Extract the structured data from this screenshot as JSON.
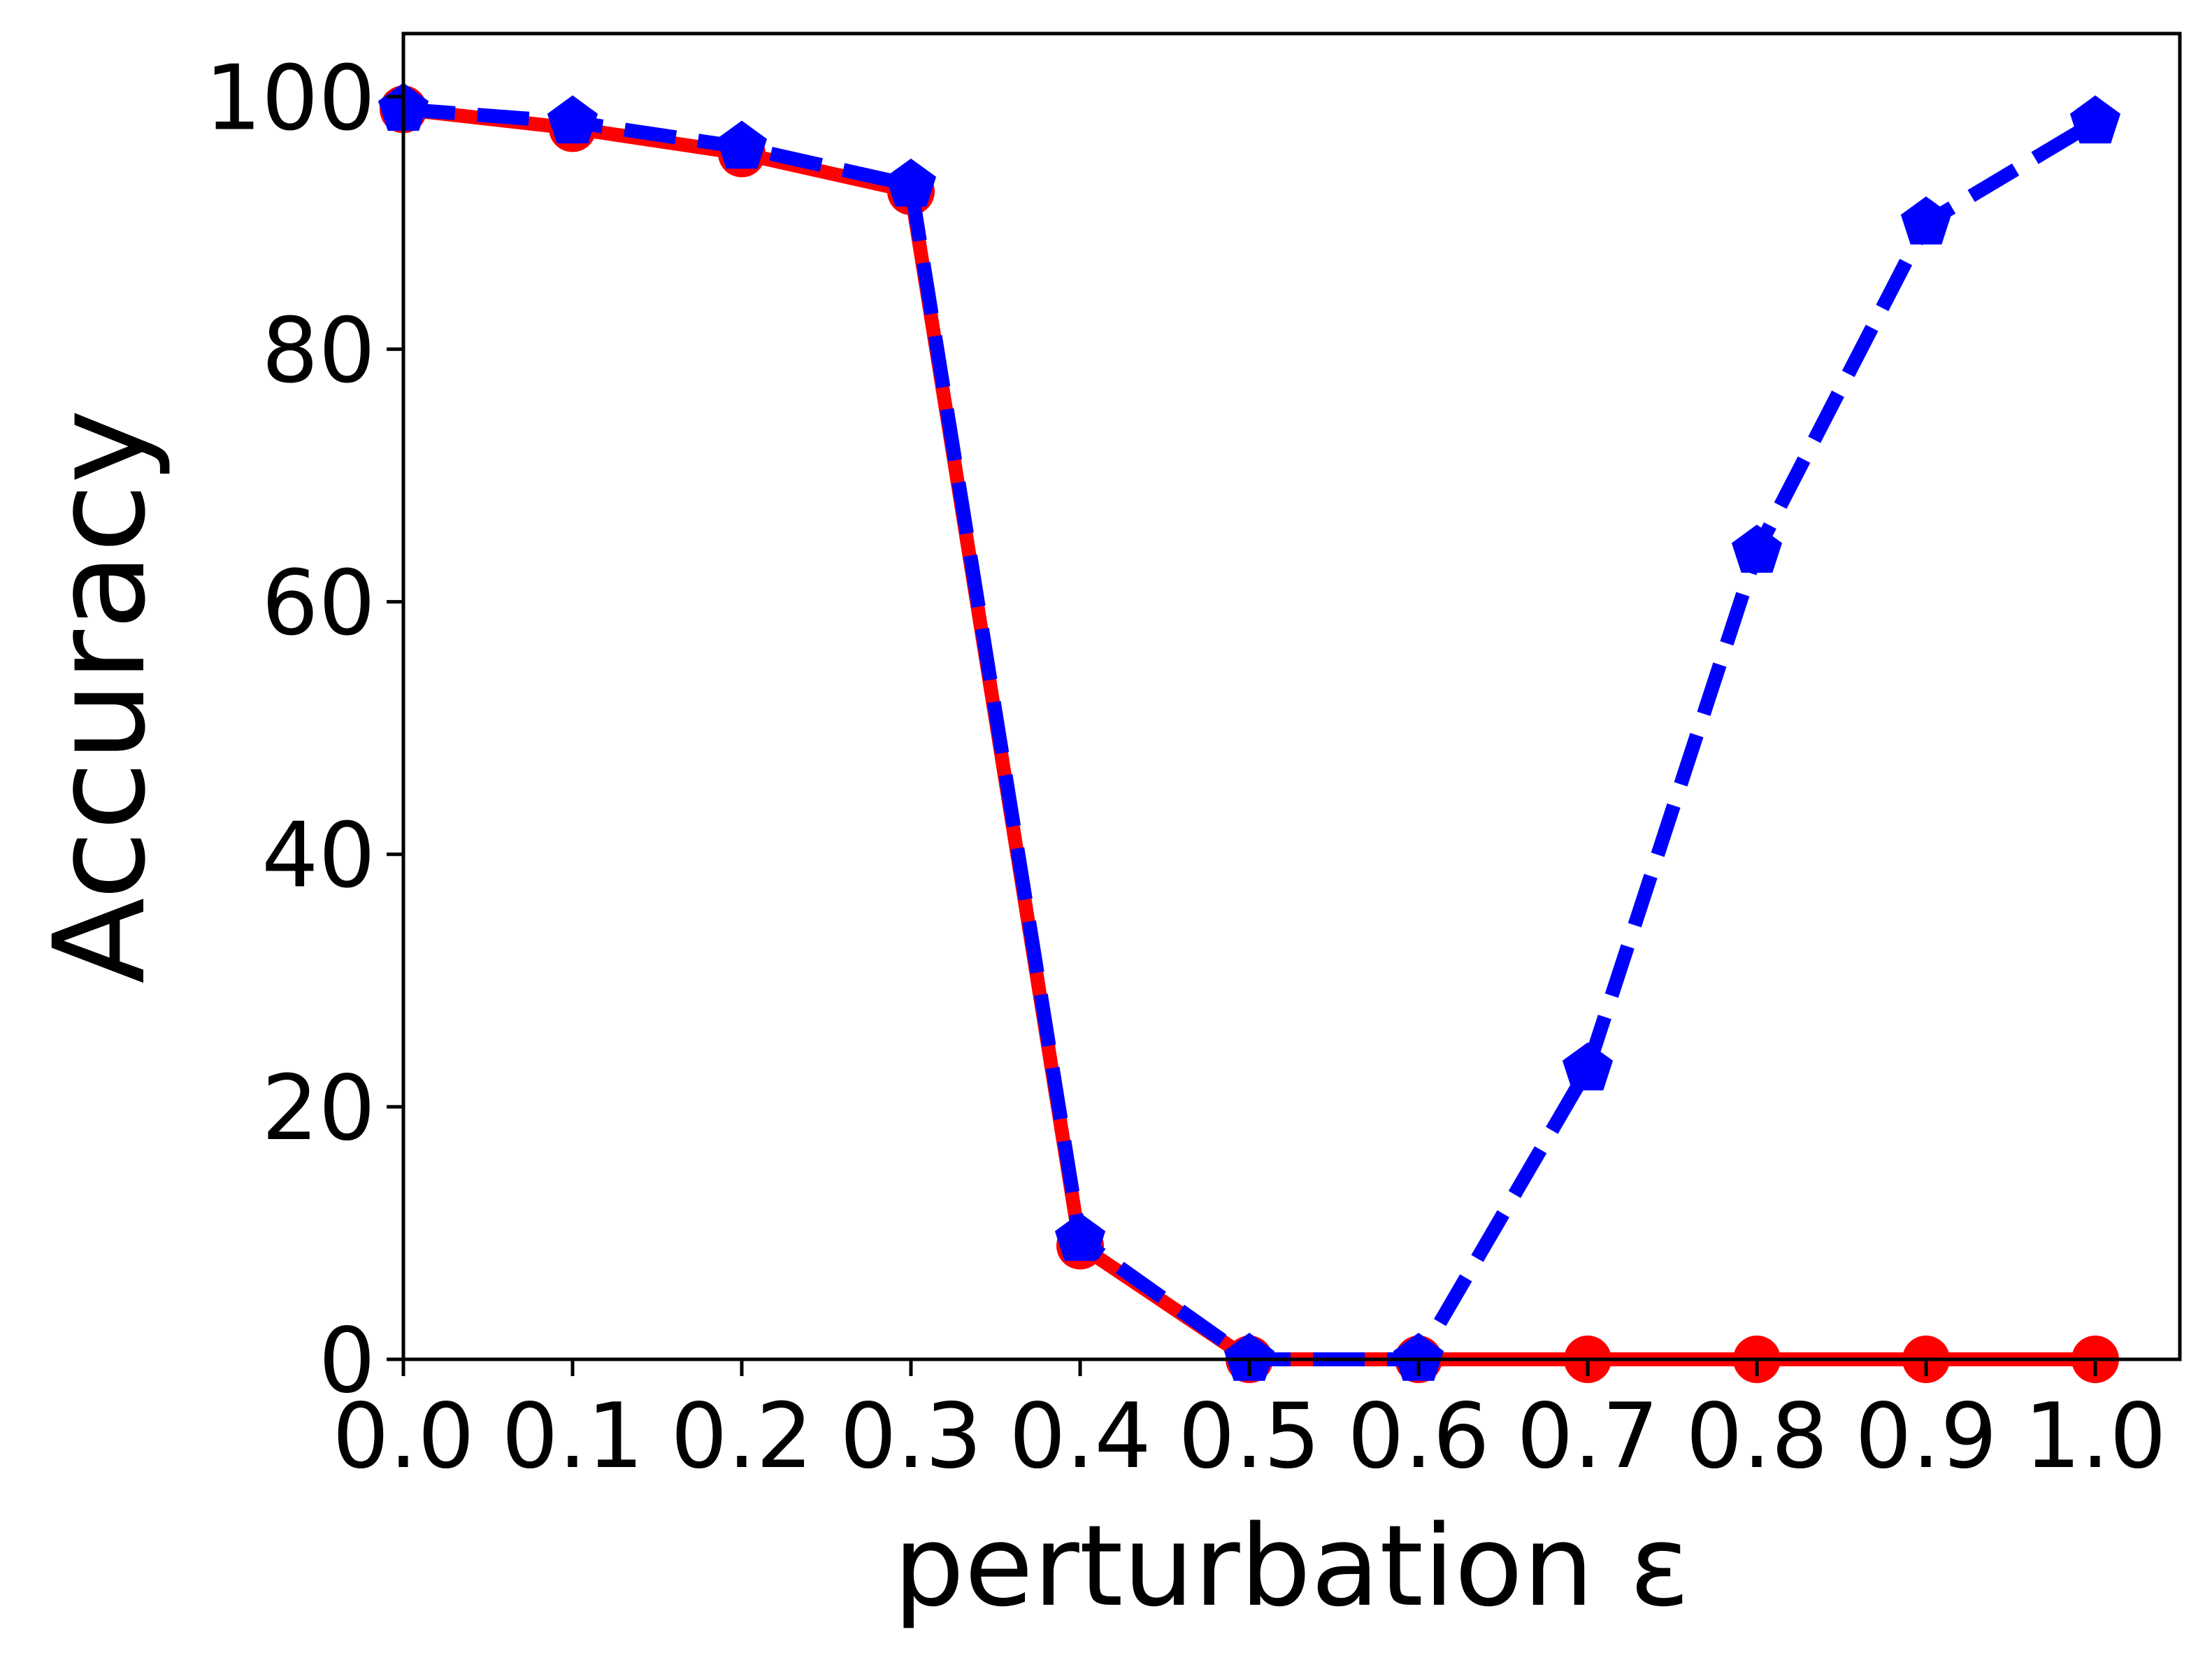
{
  "chart_data": {
    "type": "line",
    "xlabel": "perturbation ε",
    "ylabel": "Accuracy",
    "xlim": [
      0.0,
      1.05
    ],
    "ylim": [
      0,
      105
    ],
    "x": [
      0.0,
      0.1,
      0.2,
      0.3,
      0.4,
      0.5,
      0.6,
      0.7,
      0.8,
      0.9,
      1.0
    ],
    "xticks": [
      "0.0",
      "0.1",
      "0.2",
      "0.3",
      "0.4",
      "0.5",
      "0.6",
      "0.7",
      "0.8",
      "0.9",
      "1.0"
    ],
    "yticks": [
      0,
      20,
      40,
      60,
      80,
      100
    ],
    "grid": false,
    "legend": false,
    "series": [
      {
        "color": "#ff0000",
        "line_style": "solid",
        "marker": "circle",
        "values": [
          99,
          97.5,
          95.5,
          92.5,
          9,
          0,
          0,
          0,
          0,
          0,
          0
        ]
      },
      {
        "color": "#0000ff",
        "line_style": "dashed",
        "marker": "pentagon",
        "values": [
          99,
          98,
          96,
          93,
          9.5,
          0,
          0,
          23,
          64,
          90,
          98
        ]
      }
    ]
  }
}
